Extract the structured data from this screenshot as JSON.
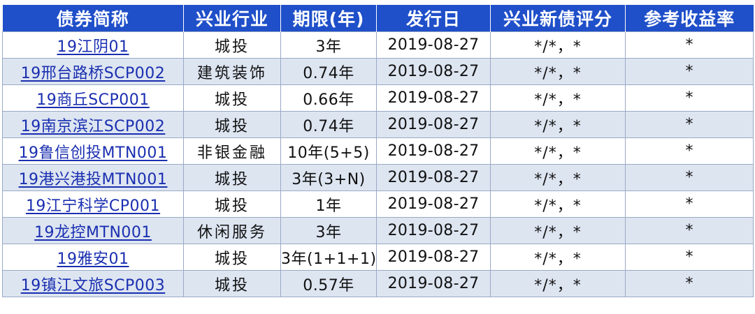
{
  "headers": [
    "债券简称",
    "兴业行业",
    "期限(年)",
    "发行日",
    "兴业新债评分",
    "参考收益率"
  ],
  "rows": [
    {
      "name": "19江阴01",
      "industry": "城投",
      "term": "3年",
      "date": "2019-08-27",
      "rating": "*/*，*",
      "yield": "*"
    },
    {
      "name": "19邢台路桥SCP002",
      "industry": "建筑装饰",
      "term": "0.74年",
      "date": "2019-08-27",
      "rating": "*/*，*",
      "yield": "*"
    },
    {
      "name": "19商丘SCP001",
      "industry": "城投",
      "term": "0.66年",
      "date": "2019-08-27",
      "rating": "*/*，*",
      "yield": "*"
    },
    {
      "name": "19南京滨江SCP002",
      "industry": "城投",
      "term": "0.74年",
      "date": "2019-08-27",
      "rating": "*/*，*",
      "yield": "*"
    },
    {
      "name": "19鲁信创投MTN001",
      "industry": "非银金融",
      "term": "10年(5+5)",
      "date": "2019-08-27",
      "rating": "*/*，*",
      "yield": "*"
    },
    {
      "name": "19港兴港投MTN001",
      "industry": "城投",
      "term": "3年(3+N)",
      "date": "2019-08-27",
      "rating": "*/*，*",
      "yield": "*"
    },
    {
      "name": "19江宁科学CP001",
      "industry": "城投",
      "term": "1年",
      "date": "2019-08-27",
      "rating": "*/*，*",
      "yield": "*"
    },
    {
      "name": "19龙控MTN001",
      "industry": "休闲服务",
      "term": "3年",
      "date": "2019-08-27",
      "rating": "*/*，*",
      "yield": "*"
    },
    {
      "name": "19雅安01",
      "industry": "城投",
      "term": "3年(1+1+1)",
      "date": "2019-08-27",
      "rating": "*/*，*",
      "yield": "*"
    },
    {
      "name": "19镇江文旅SCP003",
      "industry": "城投",
      "term": "0.57年",
      "date": "2019-08-27",
      "rating": "*/*，*",
      "yield": "*"
    }
  ]
}
